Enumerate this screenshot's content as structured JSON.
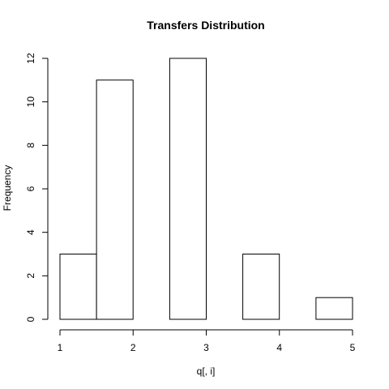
{
  "chart_data": {
    "type": "bar",
    "title": "Transfers Distribution",
    "xlabel": "q[, i]",
    "ylabel": "Frequency",
    "bins": [
      {
        "x0": 1.0,
        "x1": 1.5,
        "count": 3
      },
      {
        "x0": 1.5,
        "x1": 2.0,
        "count": 11
      },
      {
        "x0": 2.0,
        "x1": 2.5,
        "count": 0
      },
      {
        "x0": 2.5,
        "x1": 3.0,
        "count": 12
      },
      {
        "x0": 3.0,
        "x1": 3.5,
        "count": 0
      },
      {
        "x0": 3.5,
        "x1": 4.0,
        "count": 3
      },
      {
        "x0": 4.0,
        "x1": 4.5,
        "count": 0
      },
      {
        "x0": 4.5,
        "x1": 5.0,
        "count": 1
      }
    ],
    "xlim": [
      1,
      5
    ],
    "ylim": [
      0,
      12
    ],
    "x_ticks": [
      1,
      2,
      3,
      4,
      5
    ],
    "y_ticks": [
      0,
      2,
      4,
      6,
      8,
      10,
      12
    ],
    "x_tick_labels": [
      "1",
      "2",
      "3",
      "4",
      "5"
    ],
    "y_tick_labels": [
      "0",
      "2",
      "4",
      "6",
      "8",
      "10",
      "12"
    ],
    "grid": false,
    "legend": "none"
  }
}
